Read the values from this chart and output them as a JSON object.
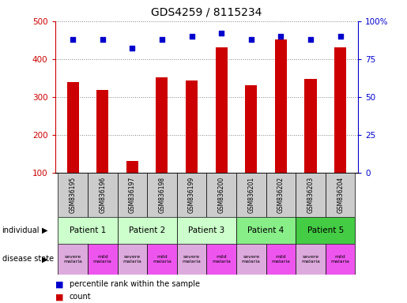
{
  "title": "GDS4259 / 8115234",
  "samples": [
    "GSM836195",
    "GSM836196",
    "GSM836197",
    "GSM836198",
    "GSM836199",
    "GSM836200",
    "GSM836201",
    "GSM836202",
    "GSM836203",
    "GSM836204"
  ],
  "counts": [
    340,
    318,
    130,
    352,
    343,
    430,
    330,
    452,
    347,
    430
  ],
  "percentiles": [
    88,
    88,
    82,
    88,
    90,
    92,
    88,
    90,
    88,
    90
  ],
  "ylim_left": [
    100,
    500
  ],
  "ylim_right": [
    0,
    100
  ],
  "yticks_left": [
    100,
    200,
    300,
    400,
    500
  ],
  "yticks_right": [
    0,
    25,
    50,
    75,
    100
  ],
  "ytick_labels_right": [
    "0",
    "25",
    "50",
    "75",
    "100%"
  ],
  "bar_color": "#cc0000",
  "dot_color": "#0000cc",
  "patients": [
    {
      "label": "Patient 1",
      "cols": [
        0,
        1
      ],
      "color": "#ccffcc"
    },
    {
      "label": "Patient 2",
      "cols": [
        2,
        3
      ],
      "color": "#ccffcc"
    },
    {
      "label": "Patient 3",
      "cols": [
        4,
        5
      ],
      "color": "#ccffcc"
    },
    {
      "label": "Patient 4",
      "cols": [
        6,
        7
      ],
      "color": "#88ee88"
    },
    {
      "label": "Patient 5",
      "cols": [
        8,
        9
      ],
      "color": "#44cc44"
    }
  ],
  "disease_states": [
    {
      "label": "severe\nmalaria",
      "color": "#ddaadd"
    },
    {
      "label": "mild\nmalaria",
      "color": "#ee55ee"
    },
    {
      "label": "severe\nmalaria",
      "color": "#ddaadd"
    },
    {
      "label": "mild\nmalaria",
      "color": "#ee55ee"
    },
    {
      "label": "severe\nmalaria",
      "color": "#ddaadd"
    },
    {
      "label": "mild\nmalaria",
      "color": "#ee55ee"
    },
    {
      "label": "severe\nmalaria",
      "color": "#ddaadd"
    },
    {
      "label": "mild\nmalaria",
      "color": "#ee55ee"
    },
    {
      "label": "severe\nmalaria",
      "color": "#ddaadd"
    },
    {
      "label": "mild\nmalaria",
      "color": "#ee55ee"
    }
  ],
  "sample_box_color": "#cccccc",
  "legend_count_color": "#cc0000",
  "legend_dot_color": "#0000cc"
}
